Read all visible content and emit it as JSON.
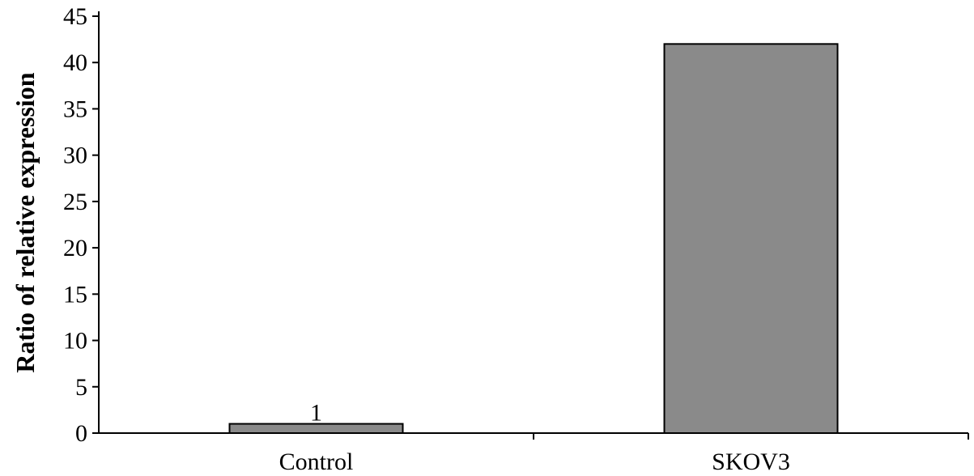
{
  "chart_data": {
    "type": "bar",
    "title": "",
    "xlabel": "",
    "ylabel": "Ratio of relative expression",
    "categories": [
      "Control",
      "SKOV3"
    ],
    "values": [
      1,
      42
    ],
    "data_labels": [
      "1",
      ""
    ],
    "ylim": [
      0,
      45
    ],
    "yticks": [
      0,
      5,
      10,
      15,
      20,
      25,
      30,
      35,
      40,
      45
    ],
    "ytick_labels": [
      "0",
      "5",
      "10",
      "15",
      "20",
      "25",
      "30",
      "35",
      "40",
      "45"
    ],
    "grid": false,
    "legend": "none",
    "bar_color": "#8a8a8a",
    "bar_stroke": "#000000"
  }
}
